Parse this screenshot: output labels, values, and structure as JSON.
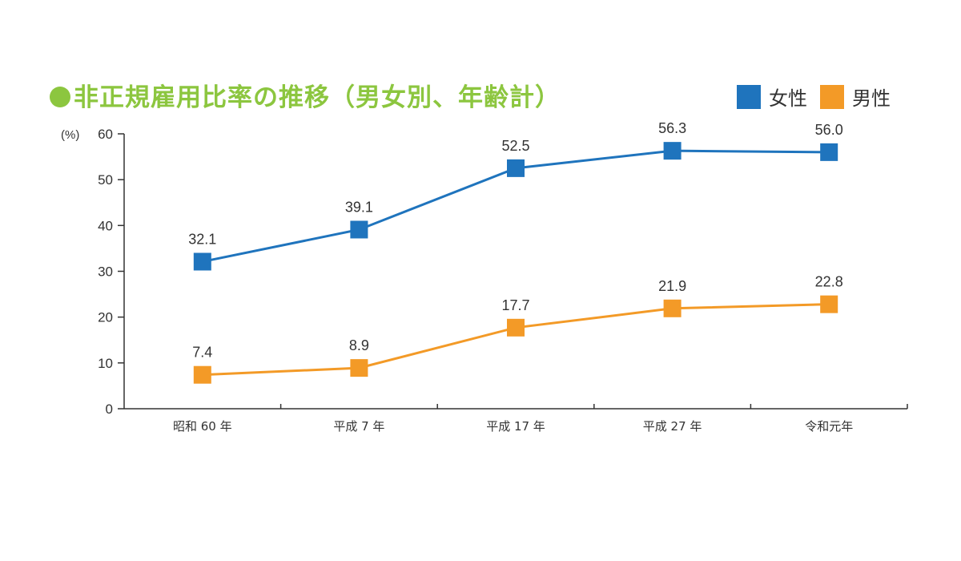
{
  "chart_data": {
    "type": "line",
    "title": "非正規雇用比率の推移（男女別、年齢計）",
    "ylabel": "(%)",
    "ylim": [
      0,
      60
    ],
    "yticks": [
      0,
      10,
      20,
      30,
      40,
      50,
      60
    ],
    "categories": [
      "昭和 60 年",
      "平成 7 年",
      "平成 17 年",
      "平成 27 年",
      "令和元年"
    ],
    "series": [
      {
        "name": "女性",
        "color": "#1f74bd",
        "values": [
          32.1,
          39.1,
          52.5,
          56.3,
          56.0
        ],
        "labels": [
          "32.1",
          "39.1",
          "52.5",
          "56.3",
          "56.0"
        ]
      },
      {
        "name": "男性",
        "color": "#f39a27",
        "values": [
          7.4,
          8.9,
          17.7,
          21.9,
          22.8
        ],
        "labels": [
          "7.4",
          "8.9",
          "17.7",
          "21.9",
          "22.8"
        ]
      }
    ],
    "legend_position": "top-right",
    "grid": false,
    "title_color": "#8cc63f"
  }
}
